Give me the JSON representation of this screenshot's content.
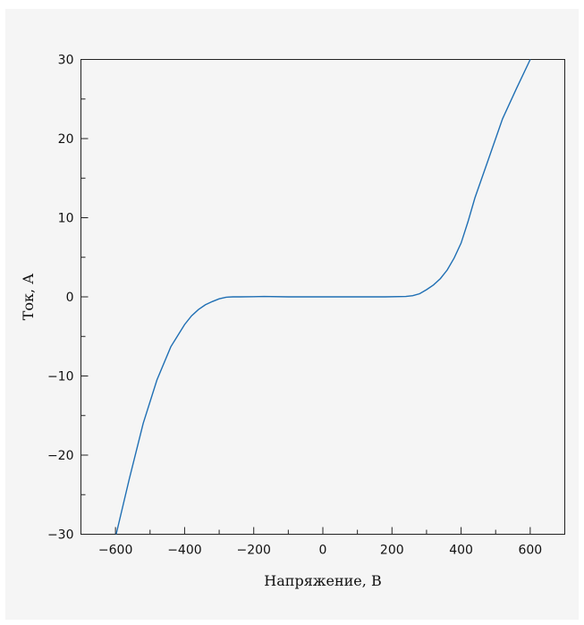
{
  "chart_data": {
    "type": "line",
    "title": "",
    "xlabel": "Напряжение, В",
    "ylabel": "Ток, А",
    "xlim": [
      -700,
      700
    ],
    "ylim": [
      -30,
      30
    ],
    "x_ticks": [
      -600,
      -400,
      -200,
      0,
      200,
      400,
      600
    ],
    "x_tick_labels": [
      "−600",
      "−400",
      "−200",
      "0",
      "200",
      "400",
      "600"
    ],
    "y_ticks": [
      -30,
      -20,
      -10,
      0,
      10,
      20,
      30
    ],
    "y_tick_labels": [
      "−30",
      "−20",
      "−10",
      "0",
      "10",
      "20",
      "30"
    ],
    "grid": false,
    "line_color": "#1f6fb4",
    "series": [
      {
        "x": [
          -598,
          -560,
          -520,
          -480,
          -440,
          -400,
          -380,
          -360,
          -340,
          -320,
          -300,
          -280,
          -260,
          -240,
          -200,
          -170,
          -100,
          0,
          100,
          180,
          240,
          260,
          280,
          300,
          320,
          340,
          360,
          380,
          400,
          420,
          440,
          480,
          520,
          560,
          600
        ],
        "y": [
          -30,
          -23,
          -16,
          -10.5,
          -6.3,
          -3.5,
          -2.4,
          -1.6,
          -1,
          -0.6,
          -0.25,
          -0.05,
          0,
          0,
          0.02,
          0.05,
          0,
          0,
          0,
          0,
          0.05,
          0.15,
          0.4,
          0.9,
          1.5,
          2.3,
          3.4,
          4.9,
          6.8,
          9.5,
          12.5,
          17.5,
          22.5,
          26.3,
          30
        ]
      }
    ]
  }
}
